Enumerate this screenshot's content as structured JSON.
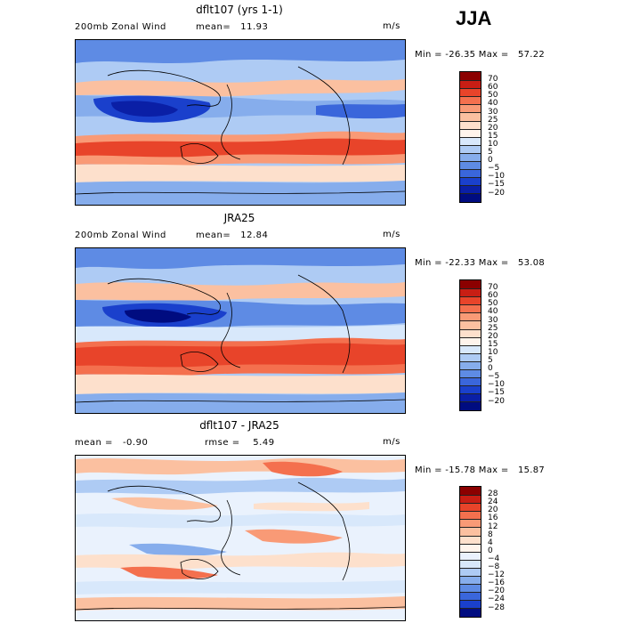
{
  "season": "JJA",
  "panels": [
    {
      "title": "dflt107 (yrs 1-1)",
      "left_text": "200mb Zonal Wind",
      "mid_text": "mean=   11.93",
      "units": "m/s",
      "stats": "Min = -26.35 Max =   57.22",
      "levels": [
        "70",
        "60",
        "50",
        "40",
        "30",
        "25",
        "20",
        "15",
        "10",
        "5",
        "0",
        "−5",
        "−10",
        "−15",
        "−20"
      ],
      "colors": [
        "#8b0000",
        "#c81e14",
        "#e8442a",
        "#f4704e",
        "#f99a76",
        "#fbc0a0",
        "#fde0cc",
        "#fff4ec",
        "#d8e8fb",
        "#aecbf4",
        "#86adec",
        "#5e8be4",
        "#3a66db",
        "#1a40cc",
        "#0a1fa6",
        "#000c80"
      ]
    },
    {
      "title": "JRA25",
      "left_text": "200mb Zonal Wind",
      "mid_text": "mean=   12.84",
      "units": "m/s",
      "stats": "Min = -22.33 Max =   53.08",
      "levels": [
        "70",
        "60",
        "50",
        "40",
        "30",
        "25",
        "20",
        "15",
        "10",
        "5",
        "0",
        "−5",
        "−10",
        "−15",
        "−20"
      ],
      "colors": [
        "#8b0000",
        "#c81e14",
        "#e8442a",
        "#f4704e",
        "#f99a76",
        "#fbc0a0",
        "#fde0cc",
        "#fff4ec",
        "#d8e8fb",
        "#aecbf4",
        "#86adec",
        "#5e8be4",
        "#3a66db",
        "#1a40cc",
        "#0a1fa6",
        "#000c80"
      ]
    },
    {
      "title": "dflt107 - JRA25",
      "left_text": "mean =   -0.90",
      "mid_text": "rmse =    5.49",
      "units": "m/s",
      "stats": "Min = -15.78 Max =   15.87",
      "levels": [
        "28",
        "24",
        "20",
        "16",
        "12",
        "8",
        "4",
        "0",
        "−4",
        "−8",
        "−12",
        "−16",
        "−20",
        "−24",
        "−28"
      ],
      "colors": [
        "#8b0000",
        "#c81e14",
        "#e8442a",
        "#f4704e",
        "#f99a76",
        "#fbc0a0",
        "#fde0cc",
        "#fff4ec",
        "#eaf2fd",
        "#d8e8fb",
        "#aecbf4",
        "#86adec",
        "#5e8be4",
        "#3a66db",
        "#1a40cc",
        "#000c80"
      ]
    }
  ]
}
